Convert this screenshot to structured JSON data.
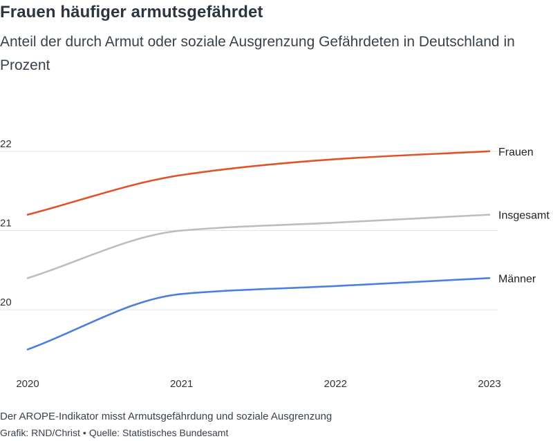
{
  "title": "Frauen häufiger armutsgefährdet",
  "subtitle": "Anteil der durch Armut oder soziale Ausgrenzung Gefährdeten in Deutschland in Prozent",
  "footer": {
    "note": "Der AROPE-Indikator misst Armutsgefährdung und soziale Ausgrenzung",
    "credit": "Grafik: RND/Christ",
    "separator": "•",
    "source": "Quelle: Statistisches Bundesamt"
  },
  "chart_data": {
    "type": "line",
    "x": [
      "2020",
      "2021",
      "2022",
      "2023"
    ],
    "ylim": [
      19.2,
      22.6
    ],
    "yticks": [
      20,
      21,
      22
    ],
    "grid": true,
    "series": [
      {
        "name": "Frauen",
        "values": [
          21.2,
          21.7,
          21.9,
          22.0
        ],
        "color": "#e0532a"
      },
      {
        "name": "Insgesamt",
        "values": [
          20.4,
          21.0,
          21.1,
          21.2
        ],
        "color": "#bdbdbd"
      },
      {
        "name": "Männer",
        "values": [
          19.5,
          20.2,
          20.3,
          20.4
        ],
        "color": "#4a7fe0"
      }
    ]
  }
}
